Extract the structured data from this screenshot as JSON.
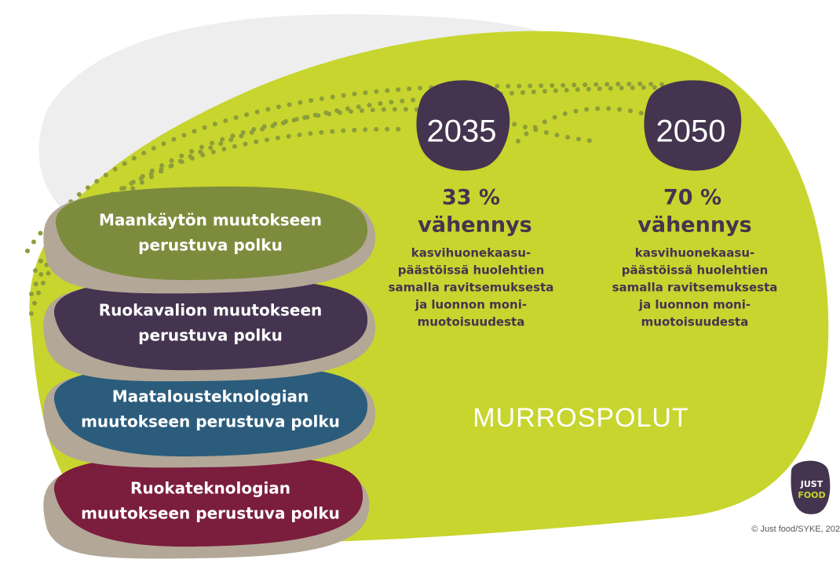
{
  "milestones": [
    {
      "year": "2035",
      "percent": "33 %",
      "headline": "vähennys",
      "description": [
        "kasvihuonekaasu-",
        "päästöissä huolehtien",
        "samalla ravitsemuksesta",
        "ja luonnon moni-",
        "muotoisuudesta"
      ]
    },
    {
      "year": "2050",
      "percent": "70 %",
      "headline": "vähennys",
      "description": [
        "kasvihuonekaasu-",
        "päästöissä huolehtien",
        "samalla ravitsemuksesta",
        "ja luonnon moni-",
        "muotoisuudesta"
      ]
    }
  ],
  "pathways": [
    {
      "label": [
        "Maankäytön muutokseen",
        "perustuva polku"
      ]
    },
    {
      "label": [
        "Ruokavalion muutokseen",
        "perustuva polku"
      ]
    },
    {
      "label": [
        "Maatalousteknologian",
        "muutokseen perustuva polku"
      ]
    },
    {
      "label": [
        "Ruokateknologian",
        "muutokseen perustuva polku"
      ]
    }
  ],
  "title": "MURROSPOLUT",
  "logo": [
    "JUST",
    "FOOD"
  ],
  "credit": "© Just food/SYKE, 202"
}
